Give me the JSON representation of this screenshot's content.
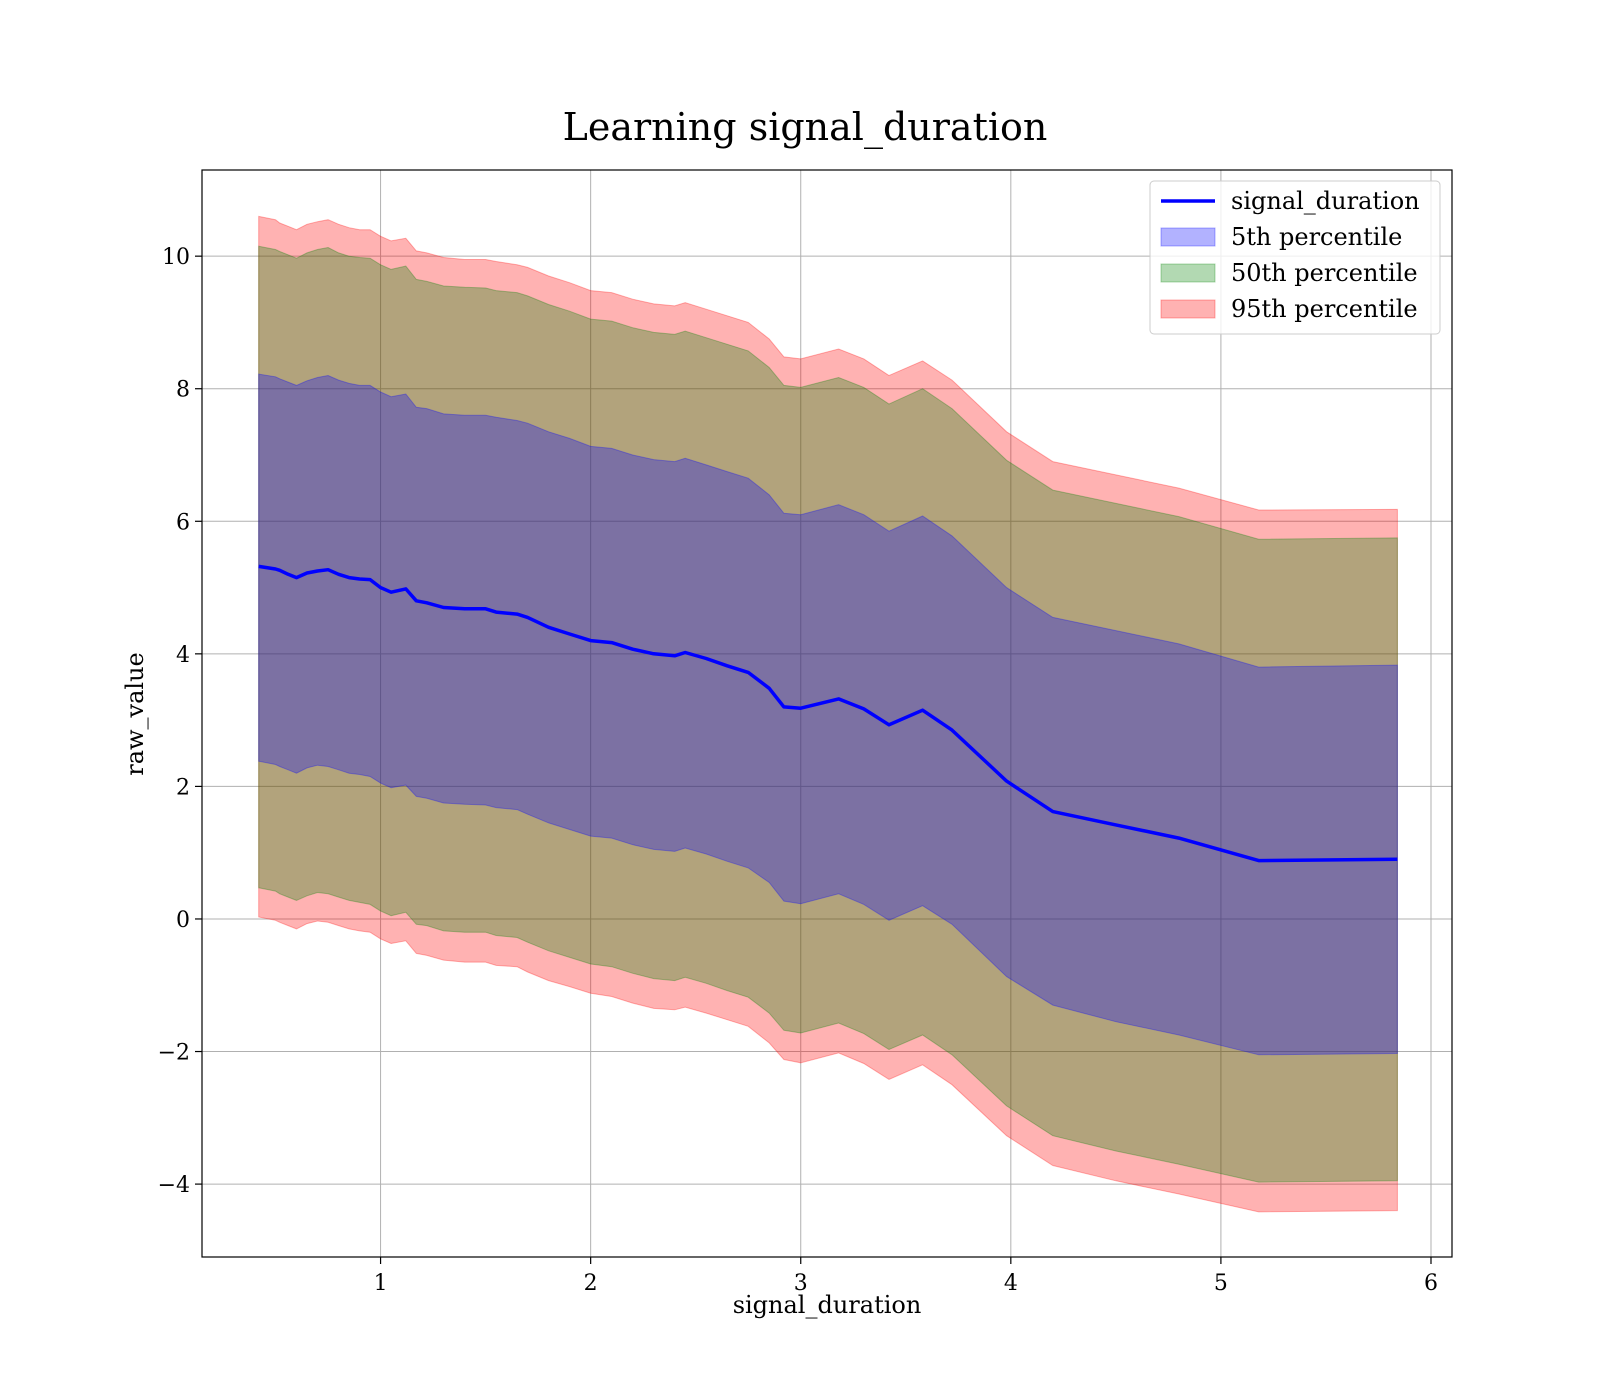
{
  "chart_data": {
    "type": "area",
    "title": "Learning signal_duration",
    "xlabel": "signal_duration",
    "ylabel": "raw_value",
    "xlim": [
      0.15,
      6.1
    ],
    "ylim": [
      -5.1,
      11.3
    ],
    "xticks": [
      1,
      2,
      3,
      4,
      5,
      6
    ],
    "yticks": [
      -4,
      -2,
      0,
      2,
      4,
      6,
      8,
      10
    ],
    "xtick_labels": [
      "1",
      "2",
      "3",
      "4",
      "5",
      "6"
    ],
    "ytick_labels": [
      "−4",
      "−2",
      "0",
      "2",
      "4",
      "6",
      "8",
      "10"
    ],
    "grid": true,
    "legend_position": "top-right",
    "x": [
      0.42,
      0.5,
      0.52,
      0.56,
      0.6,
      0.65,
      0.7,
      0.75,
      0.8,
      0.85,
      0.9,
      0.95,
      1.0,
      1.05,
      1.12,
      1.17,
      1.22,
      1.3,
      1.4,
      1.5,
      1.55,
      1.65,
      1.7,
      1.8,
      1.9,
      2.0,
      2.1,
      2.2,
      2.3,
      2.4,
      2.45,
      2.55,
      2.65,
      2.75,
      2.85,
      2.92,
      3.0,
      3.18,
      3.3,
      3.42,
      3.58,
      3.72,
      3.98,
      4.2,
      4.5,
      4.8,
      5.18,
      5.84
    ],
    "series": [
      {
        "name": "signal_duration",
        "values": [
          5.32,
          5.28,
          5.26,
          5.2,
          5.15,
          5.22,
          5.25,
          5.27,
          5.2,
          5.15,
          5.13,
          5.12,
          5.0,
          4.93,
          4.98,
          4.8,
          4.77,
          4.7,
          4.68,
          4.68,
          4.63,
          4.6,
          4.55,
          4.4,
          4.3,
          4.2,
          4.17,
          4.07,
          4.0,
          3.97,
          4.02,
          3.93,
          3.82,
          3.72,
          3.48,
          3.2,
          3.18,
          3.32,
          3.17,
          2.93,
          3.15,
          2.85,
          2.08,
          1.62,
          1.42,
          1.22,
          0.88,
          0.9
        ]
      },
      {
        "name": "5th percentile",
        "lower": [
          2.38,
          2.33,
          2.3,
          2.25,
          2.2,
          2.28,
          2.32,
          2.3,
          2.25,
          2.2,
          2.18,
          2.15,
          2.05,
          1.98,
          2.02,
          1.85,
          1.82,
          1.75,
          1.73,
          1.72,
          1.68,
          1.65,
          1.58,
          1.45,
          1.35,
          1.25,
          1.22,
          1.12,
          1.05,
          1.02,
          1.07,
          0.98,
          0.87,
          0.77,
          0.55,
          0.27,
          0.23,
          0.38,
          0.22,
          -0.02,
          0.2,
          -0.08,
          -0.87,
          -1.3,
          -1.55,
          -1.75,
          -2.05,
          -2.03
        ],
        "upper": [
          8.22,
          8.18,
          8.15,
          8.1,
          8.05,
          8.12,
          8.17,
          8.2,
          8.13,
          8.08,
          8.05,
          8.05,
          7.95,
          7.88,
          7.92,
          7.72,
          7.7,
          7.62,
          7.6,
          7.6,
          7.57,
          7.52,
          7.48,
          7.35,
          7.25,
          7.13,
          7.1,
          7.0,
          6.93,
          6.9,
          6.95,
          6.85,
          6.75,
          6.65,
          6.4,
          6.12,
          6.1,
          6.25,
          6.1,
          5.85,
          6.08,
          5.78,
          5.0,
          4.55,
          4.35,
          4.15,
          3.8,
          3.83
        ]
      },
      {
        "name": "50th percentile",
        "lower": [
          0.47,
          0.42,
          0.38,
          0.33,
          0.28,
          0.35,
          0.4,
          0.38,
          0.33,
          0.28,
          0.25,
          0.22,
          0.12,
          0.05,
          0.1,
          -0.08,
          -0.1,
          -0.18,
          -0.2,
          -0.2,
          -0.25,
          -0.28,
          -0.35,
          -0.48,
          -0.58,
          -0.68,
          -0.72,
          -0.82,
          -0.9,
          -0.93,
          -0.88,
          -0.97,
          -1.08,
          -1.18,
          -1.42,
          -1.68,
          -1.72,
          -1.57,
          -1.73,
          -1.97,
          -1.75,
          -2.05,
          -2.82,
          -3.27,
          -3.5,
          -3.7,
          -3.97,
          -3.95
        ],
        "upper": [
          10.15,
          10.1,
          10.07,
          10.02,
          9.97,
          10.05,
          10.1,
          10.13,
          10.05,
          10.0,
          9.98,
          9.97,
          9.87,
          9.8,
          9.85,
          9.65,
          9.62,
          9.55,
          9.53,
          9.52,
          9.48,
          9.45,
          9.4,
          9.27,
          9.17,
          9.05,
          9.02,
          8.92,
          8.85,
          8.82,
          8.87,
          8.77,
          8.67,
          8.57,
          8.32,
          8.05,
          8.02,
          8.17,
          8.02,
          7.77,
          8.0,
          7.7,
          6.92,
          6.47,
          6.27,
          6.07,
          5.73,
          5.75
        ]
      },
      {
        "name": "95th percentile",
        "lower": [
          0.03,
          -0.02,
          -0.05,
          -0.1,
          -0.15,
          -0.07,
          -0.03,
          -0.05,
          -0.1,
          -0.15,
          -0.18,
          -0.2,
          -0.3,
          -0.37,
          -0.33,
          -0.52,
          -0.55,
          -0.62,
          -0.65,
          -0.65,
          -0.7,
          -0.72,
          -0.8,
          -0.93,
          -1.02,
          -1.12,
          -1.17,
          -1.27,
          -1.35,
          -1.37,
          -1.33,
          -1.42,
          -1.52,
          -1.62,
          -1.87,
          -2.12,
          -2.17,
          -2.02,
          -2.18,
          -2.42,
          -2.2,
          -2.5,
          -3.27,
          -3.72,
          -3.95,
          -4.15,
          -4.42,
          -4.4
        ],
        "upper": [
          10.6,
          10.55,
          10.5,
          10.45,
          10.4,
          10.48,
          10.52,
          10.55,
          10.48,
          10.43,
          10.4,
          10.4,
          10.3,
          10.23,
          10.27,
          10.08,
          10.05,
          9.98,
          9.95,
          9.95,
          9.92,
          9.87,
          9.83,
          9.7,
          9.6,
          9.48,
          9.45,
          9.35,
          9.28,
          9.25,
          9.3,
          9.2,
          9.1,
          9.0,
          8.75,
          8.48,
          8.45,
          8.6,
          8.45,
          8.2,
          8.42,
          8.13,
          7.35,
          6.9,
          6.7,
          6.5,
          6.17,
          6.18
        ]
      }
    ]
  },
  "legend": {
    "entries": [
      {
        "label": "signal_duration",
        "kind": "line",
        "color": "#0000ff"
      },
      {
        "label": "5th percentile",
        "kind": "patch",
        "color": "#0000ff"
      },
      {
        "label": "50th percentile",
        "kind": "patch",
        "color": "#008000"
      },
      {
        "label": "95th percentile",
        "kind": "patch",
        "color": "#ff0000"
      }
    ]
  },
  "colors": {
    "line": "#0000ff",
    "band_5th": "#0000ff",
    "band_50th": "#008000",
    "band_95th": "#ff0000"
  }
}
